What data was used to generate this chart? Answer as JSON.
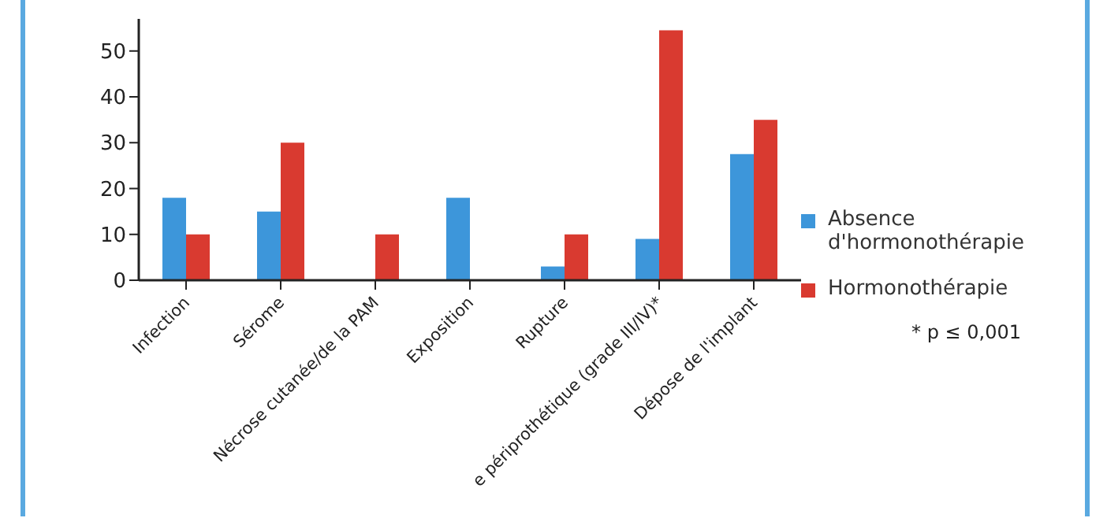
{
  "chart_data": {
    "type": "bar",
    "categories": [
      "Infection",
      "Sérome",
      "Nécrose cutanée/de la PAM",
      "Exposition",
      "Rupture",
      "e périprothétique (grade III/IV)*",
      "Dépose de l'implant"
    ],
    "series": [
      {
        "name": "Absence d'hormonothérapie",
        "color": "#3d96da",
        "values": [
          18,
          15,
          null,
          18,
          3,
          9,
          27.5
        ]
      },
      {
        "name": "Hormonothérapie",
        "color": "#d93a30",
        "values": [
          10,
          30,
          10,
          null,
          10,
          54.5,
          35
        ]
      }
    ],
    "ylim": [
      0,
      57
    ],
    "yticks": [
      0,
      10,
      20,
      30,
      40,
      50
    ],
    "grid": false,
    "legend": "right",
    "annotations": [
      "* p ≤ 0,001"
    ]
  }
}
